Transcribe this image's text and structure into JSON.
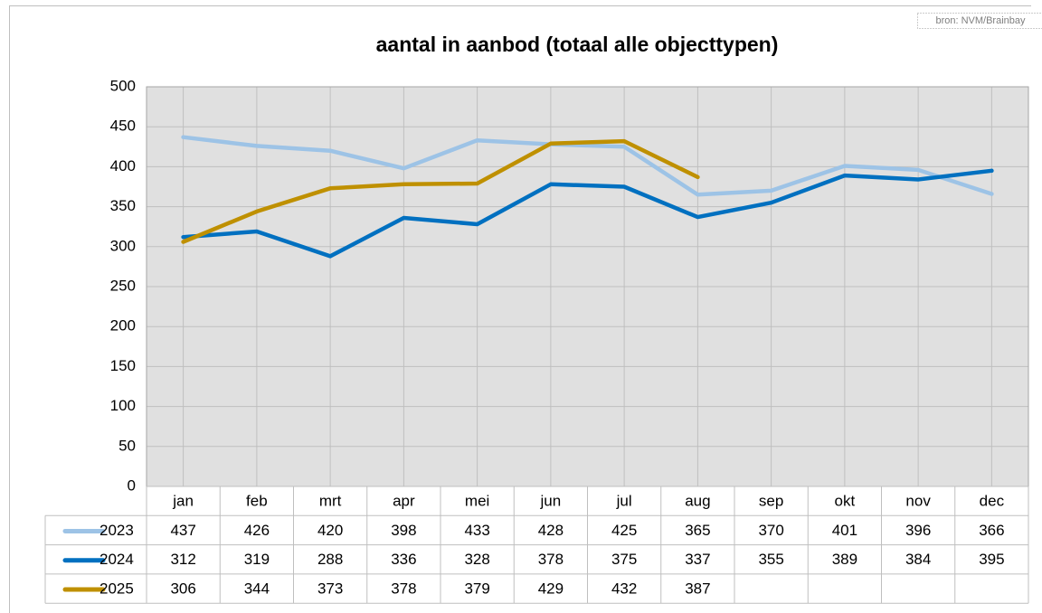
{
  "chart_data": {
    "type": "line",
    "title": "aantal in aanbod (totaal alle objecttypen)",
    "source": "bron: NVM/Brainbay",
    "categories": [
      "jan",
      "feb",
      "mrt",
      "apr",
      "mei",
      "jun",
      "jul",
      "aug",
      "sep",
      "okt",
      "nov",
      "dec"
    ],
    "series": [
      {
        "name": "2023",
        "color": "#9dc3e6",
        "values": [
          437,
          426,
          420,
          398,
          433,
          428,
          425,
          365,
          370,
          401,
          396,
          366
        ]
      },
      {
        "name": "2024",
        "color": "#0070c0",
        "values": [
          312,
          319,
          288,
          336,
          328,
          378,
          375,
          337,
          355,
          389,
          384,
          395
        ]
      },
      {
        "name": "2025",
        "color": "#bf9000",
        "values": [
          306,
          344,
          373,
          378,
          379,
          429,
          432,
          387,
          null,
          null,
          null,
          null
        ]
      }
    ],
    "ylim": [
      0,
      500
    ],
    "yticks": [
      0,
      50,
      100,
      150,
      200,
      250,
      300,
      350,
      400,
      450,
      500
    ],
    "grid": true,
    "data_table": true
  }
}
